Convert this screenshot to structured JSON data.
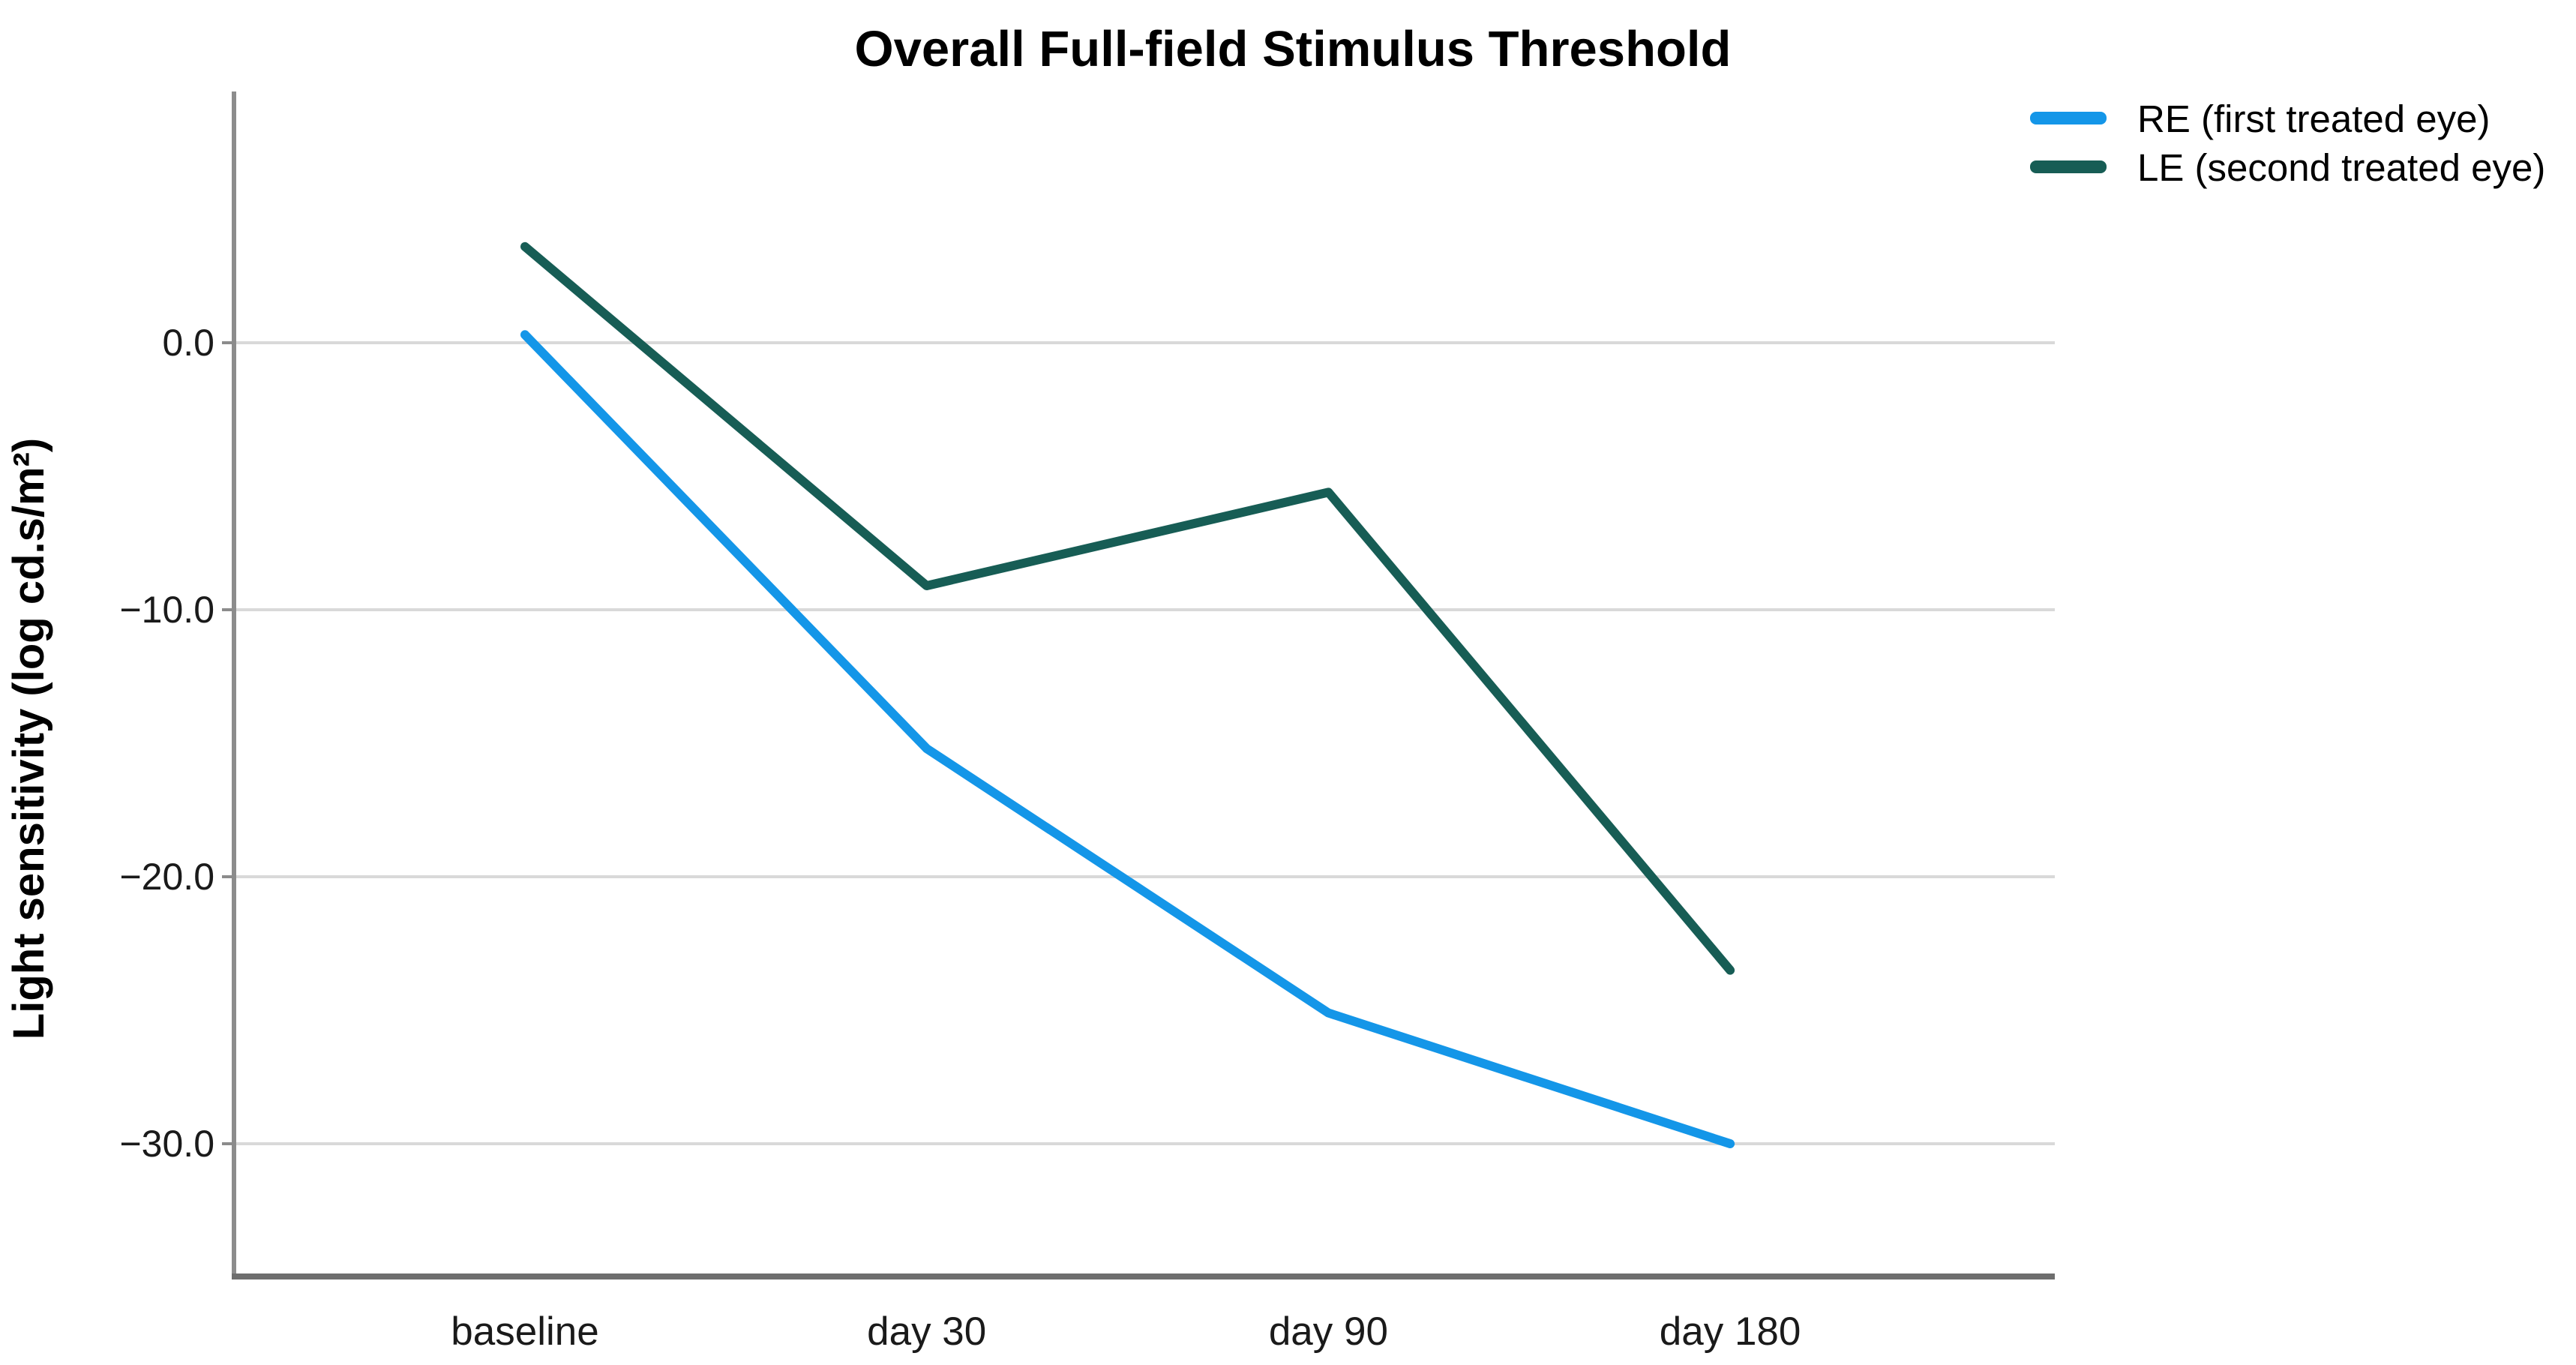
{
  "chart_data": {
    "type": "line",
    "title": "Overall Full-field Stimulus Threshold",
    "xlabel": "",
    "ylabel": "Light sensitivity (log cd.s/m²)",
    "categories": [
      "baseline",
      "day 30",
      "day 90",
      "day 180"
    ],
    "series": [
      {
        "name": "RE (first treated eye)",
        "color": "#1496E8",
        "values": [
          0.3,
          -15.2,
          -25.1,
          -30.0
        ]
      },
      {
        "name": "LE (second treated eye)",
        "color": "#175D55",
        "values": [
          3.6,
          -9.1,
          -5.6,
          -23.5
        ]
      }
    ],
    "yticks": [
      "0.0",
      "−10.0",
      "−20.0",
      "−30.0"
    ],
    "ytick_values": [
      0,
      -10,
      -20,
      -30
    ],
    "ylim": [
      -35,
      9.4
    ],
    "grid": "horizontal",
    "legend_position": "top-right",
    "colors": {
      "background": "#FFFFFF",
      "gridline": "#D9D9D9",
      "y_axis": "#8C8C8C",
      "x_axis": "#6E6E6E",
      "text": "#000000"
    }
  }
}
